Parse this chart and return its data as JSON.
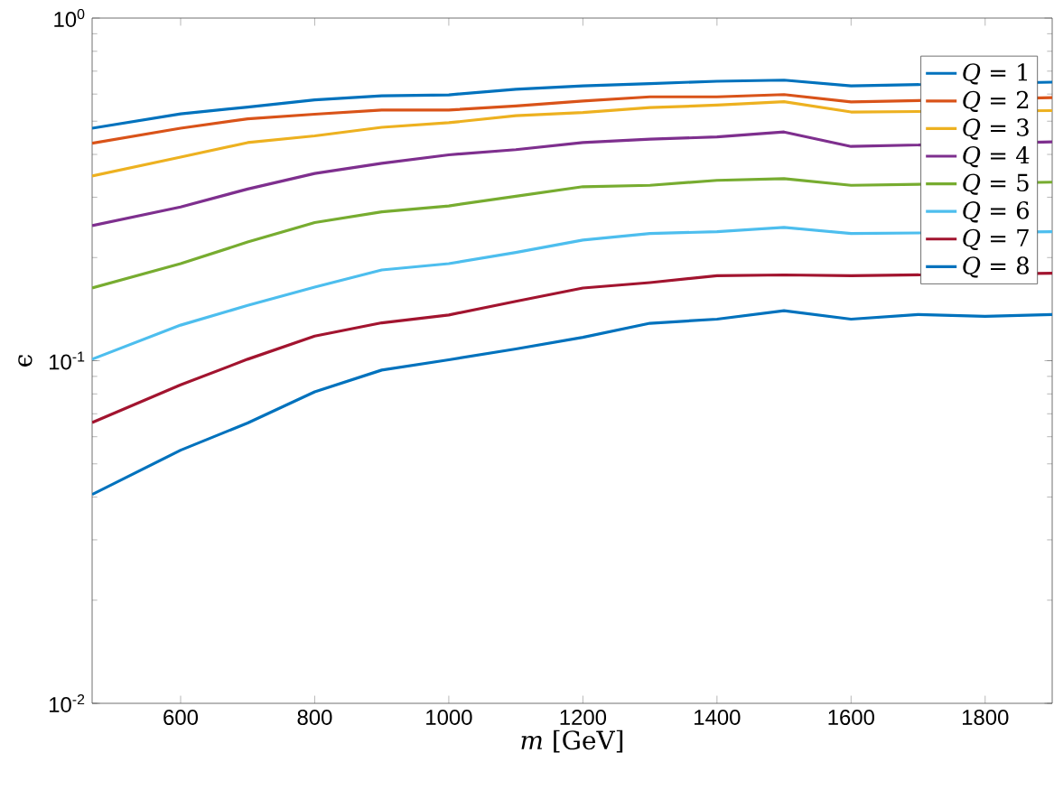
{
  "chart_data": {
    "type": "line",
    "xlabel": "*m* [GeV]",
    "ylabel": "ϵ",
    "log": "y",
    "marker": "none",
    "line_style": "solid",
    "legend": "top right",
    "xlim": [
      468,
      1900
    ],
    "xticks": [
      600,
      800,
      1000,
      1200,
      1400,
      1600,
      1800
    ],
    "ylim": [
      0.01,
      1
    ],
    "yticks": [
      {
        "value": 0.01,
        "label": "10$^{-2}$"
      },
      {
        "value": 0.1,
        "label": "10$^{-1}$"
      },
      {
        "value": 1,
        "label": "10$^{0}$"
      }
    ],
    "series": [
      {
        "name": "*Q* = 1",
        "color": "#0072bd",
        "x": [
          468,
          600,
          700,
          800,
          900,
          1000,
          1100,
          1200,
          1300,
          1400,
          1500,
          1600,
          1900
        ],
        "values": [
          0.477,
          0.525,
          0.55,
          0.577,
          0.593,
          0.597,
          0.62,
          0.634,
          0.644,
          0.654,
          0.659,
          0.634,
          0.65
        ]
      },
      {
        "name": "*Q* = 2",
        "color": "#d95319",
        "x": [
          468,
          600,
          700,
          800,
          900,
          1000,
          1100,
          1200,
          1300,
          1400,
          1500,
          1600,
          1900
        ],
        "values": [
          0.431,
          0.477,
          0.508,
          0.524,
          0.539,
          0.539,
          0.554,
          0.573,
          0.589,
          0.589,
          0.598,
          0.569,
          0.586
        ]
      },
      {
        "name": "*Q* = 3",
        "color": "#edb120",
        "x": [
          468,
          600,
          700,
          800,
          900,
          1000,
          1100,
          1200,
          1300,
          1400,
          1500,
          1600,
          1900
        ],
        "values": [
          0.346,
          0.393,
          0.433,
          0.453,
          0.48,
          0.495,
          0.519,
          0.53,
          0.548,
          0.557,
          0.57,
          0.532,
          0.537
        ]
      },
      {
        "name": "*Q* = 4",
        "color": "#7e2f8e",
        "x": [
          468,
          600,
          700,
          800,
          900,
          1000,
          1100,
          1200,
          1300,
          1400,
          1500,
          1600,
          1900
        ],
        "values": [
          0.248,
          0.281,
          0.317,
          0.352,
          0.377,
          0.399,
          0.413,
          0.433,
          0.443,
          0.45,
          0.465,
          0.422,
          0.435
        ]
      },
      {
        "name": "*Q* = 5",
        "color": "#77ac30",
        "x": [
          468,
          600,
          700,
          800,
          900,
          1000,
          1100,
          1200,
          1300,
          1400,
          1500,
          1600,
          1900
        ],
        "values": [
          0.163,
          0.192,
          0.222,
          0.253,
          0.272,
          0.283,
          0.302,
          0.322,
          0.325,
          0.336,
          0.34,
          0.325,
          0.332
        ]
      },
      {
        "name": "*Q* = 6",
        "color": "#4dbeee",
        "x": [
          468,
          600,
          700,
          800,
          900,
          1000,
          1100,
          1200,
          1300,
          1400,
          1500,
          1600,
          1900
        ],
        "values": [
          0.101,
          0.127,
          0.145,
          0.164,
          0.184,
          0.192,
          0.207,
          0.225,
          0.235,
          0.238,
          0.245,
          0.235,
          0.238
        ]
      },
      {
        "name": "*Q* = 7",
        "color": "#a2142f",
        "x": [
          468,
          600,
          700,
          800,
          900,
          1000,
          1100,
          1200,
          1300,
          1400,
          1500,
          1600,
          1900
        ],
        "values": [
          0.066,
          0.085,
          0.101,
          0.118,
          0.129,
          0.136,
          0.149,
          0.163,
          0.169,
          0.177,
          0.178,
          0.177,
          0.18
        ]
      },
      {
        "name": "*Q* = 8",
        "color": "#0072bd",
        "x": [
          468,
          600,
          700,
          800,
          900,
          1000,
          1100,
          1200,
          1300,
          1400,
          1500,
          1600,
          1700,
          1800,
          1900
        ],
        "values": [
          0.0407,
          0.0548,
          0.0658,
          0.0811,
          0.0939,
          0.1006,
          0.1082,
          0.117,
          0.1286,
          0.1322,
          0.14,
          0.1322,
          0.1363,
          0.1347,
          0.1363
        ]
      }
    ]
  }
}
